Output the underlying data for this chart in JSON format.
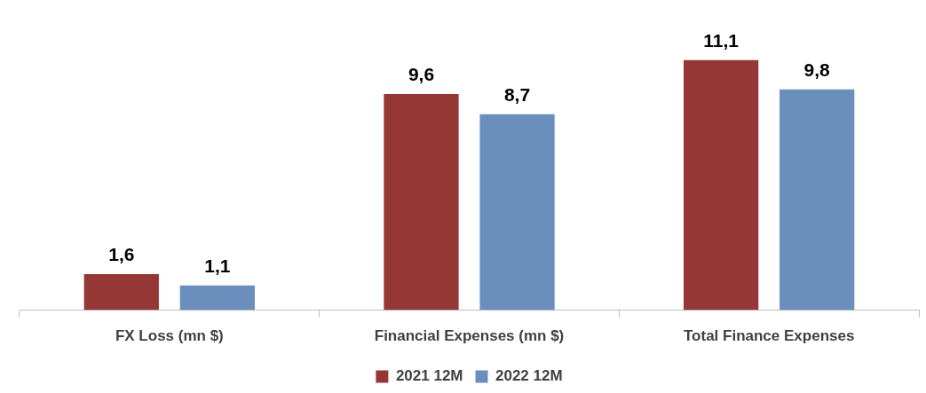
{
  "chart_data": {
    "type": "bar",
    "categories": [
      "FX Loss (mn $)",
      "Financial Expenses (mn $)",
      "Total Finance Expenses"
    ],
    "series": [
      {
        "name": "2021 12M",
        "color": "#953735",
        "values": [
          1.6,
          9.6,
          11.1
        ],
        "value_labels": [
          "1,6",
          "9,6",
          "11,1"
        ]
      },
      {
        "name": "2022 12M",
        "color": "#6a8fbd",
        "values": [
          1.1,
          8.7,
          9.8
        ],
        "value_labels": [
          "1,1",
          "8,7",
          "9,8"
        ]
      }
    ],
    "grid": false,
    "legend": "bottom"
  }
}
